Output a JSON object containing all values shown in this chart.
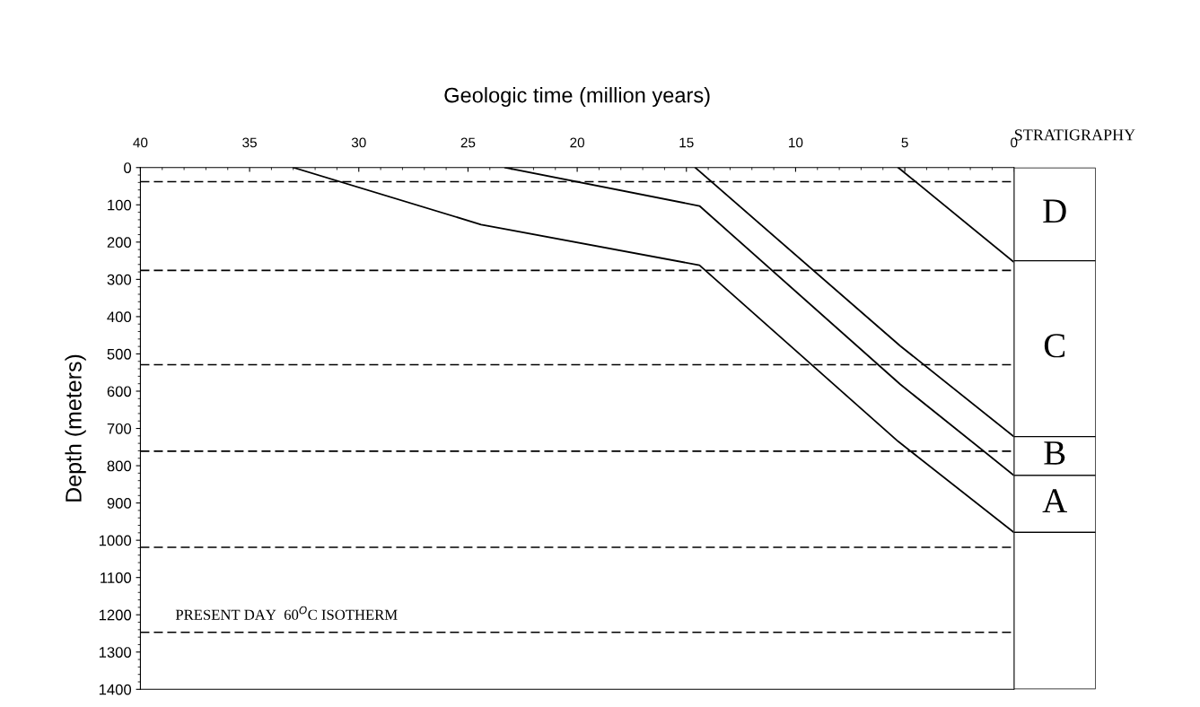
{
  "chart_data": [
    {
      "type": "line",
      "xlabel": "Geologic time (million years)",
      "ylabel": "Depth (meters)",
      "xlim": [
        40,
        0
      ],
      "xticks": [
        40,
        35,
        30,
        25,
        20,
        15,
        10,
        5,
        0
      ],
      "ylim": [
        1400,
        0
      ],
      "yticks": [
        0,
        100,
        200,
        300,
        400,
        500,
        600,
        700,
        800,
        900,
        1000,
        1100,
        1200,
        1300,
        1400
      ],
      "grid": false,
      "line_style": "solid",
      "series": [
        {
          "color": "#000000",
          "x": [
            33.0,
            24.4,
            14.4,
            5.3,
            0
          ],
          "values": [
            0,
            153,
            262,
            735,
            979
          ]
        },
        {
          "color": "#000000",
          "x": [
            23.3,
            14.4,
            5.2,
            0
          ],
          "values": [
            0,
            103,
            582,
            826
          ]
        },
        {
          "color": "#000000",
          "x": [
            14.6,
            5.2,
            0
          ],
          "values": [
            0,
            479,
            722
          ]
        },
        {
          "color": "#000000",
          "x": [
            5.3,
            0
          ],
          "values": [
            0,
            254
          ]
        }
      ],
      "ref_lines": [
        {
          "axis": "y",
          "value": 38,
          "color": "#000000",
          "line_style": "dashed"
        },
        {
          "axis": "y",
          "value": 276,
          "color": "#000000",
          "line_style": "dashed"
        },
        {
          "axis": "y",
          "value": 529,
          "color": "#000000",
          "line_style": "dashed"
        },
        {
          "axis": "y",
          "value": 761,
          "color": "#000000",
          "line_style": "dashed"
        },
        {
          "axis": "y",
          "value": 1019,
          "color": "#000000",
          "line_style": "dashed"
        },
        {
          "axis": "y",
          "value": 1247,
          "color": "#000000",
          "line_style": "dashed",
          "label": "PRESENT DAY  60$^{O}$C ISOTHERM"
        }
      ]
    },
    {
      "type": "bar",
      "title": "STRATIGRAPHY",
      "stacked": true,
      "categories": [
        null
      ],
      "ylim": [
        1400,
        0
      ],
      "tick_labels": false,
      "series": [
        {
          "name": "D",
          "color": "#ffffff",
          "values": [
            250
          ]
        },
        {
          "name": "C",
          "color": "#ffffff",
          "values": [
            472
          ]
        },
        {
          "name": "B",
          "color": "#ffffff",
          "values": [
            104
          ]
        },
        {
          "name": "A",
          "color": "#ffffff",
          "values": [
            153
          ]
        },
        {
          "color": "#ffffff",
          "values": [
            421
          ]
        }
      ]
    }
  ]
}
